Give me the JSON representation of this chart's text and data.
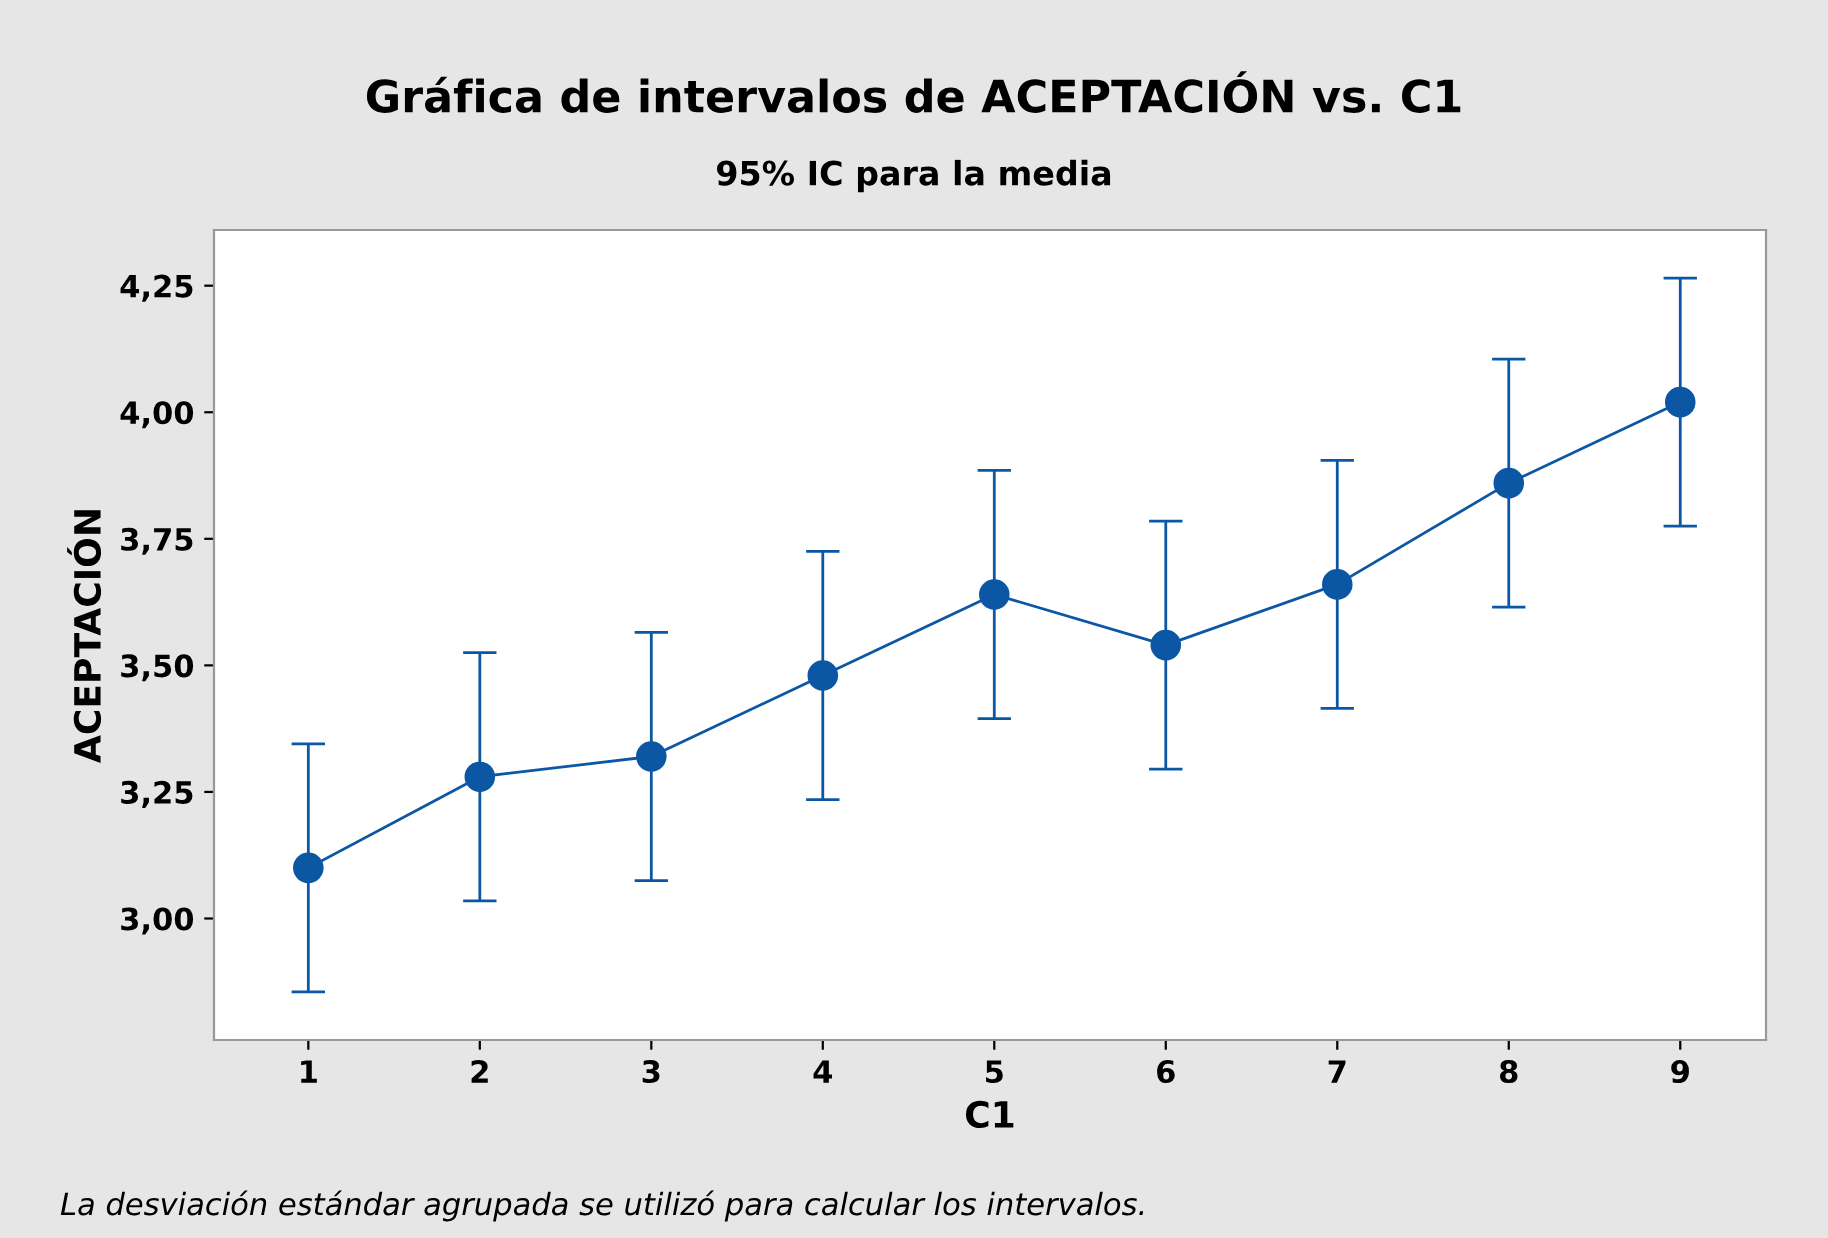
{
  "chart_data": {
    "type": "line",
    "title": "Gráfica de intervalos de ACEPTACIÓN vs. C1",
    "subtitle": "95% IC para la media",
    "xlabel": "C1",
    "ylabel": "ACEPTACIÓN",
    "annotations": [
      "La desviación estándar agrupada se utilizó para calcular los intervalos."
    ],
    "x": [
      1,
      2,
      3,
      4,
      5,
      6,
      7,
      8,
      9
    ],
    "series": [
      {
        "color": "#0b57a4",
        "values": [
          3.1,
          3.28,
          3.32,
          3.48,
          3.64,
          3.54,
          3.66,
          3.86,
          4.02
        ],
        "errors": [
          0.245,
          0.245,
          0.245,
          0.245,
          0.245,
          0.245,
          0.245,
          0.245,
          0.245
        ]
      }
    ],
    "xlim": [
      0.45,
      9.5
    ],
    "xticks": [
      1,
      2,
      3,
      4,
      5,
      6,
      7,
      8,
      9
    ],
    "ylim": [
      2.76,
      4.36
    ],
    "yticks": [
      {
        "value": 3.0,
        "label": "3,00"
      },
      {
        "value": 3.25,
        "label": "3,25"
      },
      {
        "value": 3.5,
        "label": "3,50"
      },
      {
        "value": 3.75,
        "label": "3,75"
      },
      {
        "value": 4.0,
        "label": "4,00"
      },
      {
        "value": 4.25,
        "label": "4,25"
      }
    ],
    "marker": "circle",
    "line_style": "solid",
    "grid": false,
    "legend": false
  }
}
